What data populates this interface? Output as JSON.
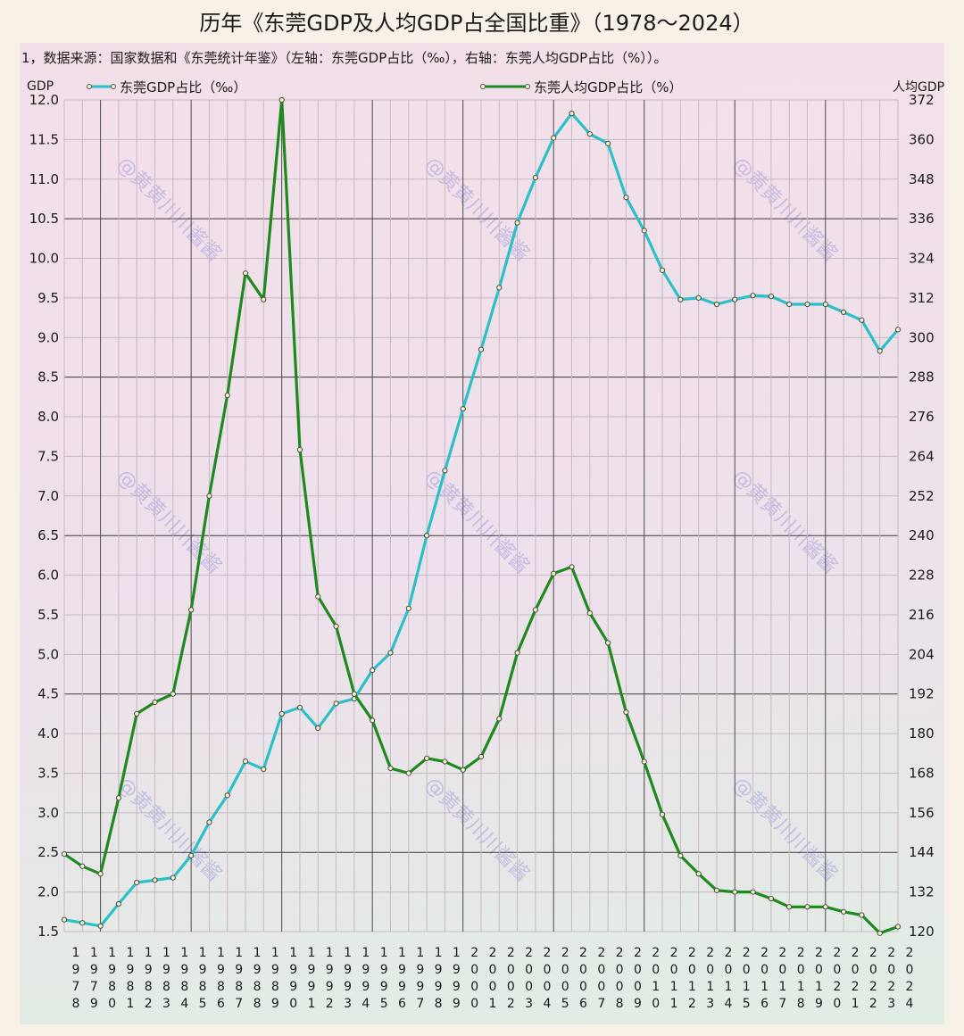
{
  "title": "历年《东莞GDP及人均GDP占全国比重》（1978～2024）",
  "note": "1，数据来源：国家数据和《东莞统计年鉴》（左轴：东莞GDP占比（‰），右轴：东莞人均GDP占比（%））。",
  "watermark": "@黄黄川川酱酱",
  "colors": {
    "gdp": "#29c0c8",
    "per_capita": "#1e8a1e",
    "marker_fill": "#f2f2c8"
  },
  "chart_data": {
    "type": "line",
    "title": "历年《东莞GDP及人均GDP占全国比重》（1978～2024）",
    "left_axis_label": "GDP",
    "right_axis_label": "人均GDP",
    "ylim_left": [
      1.5,
      12.0
    ],
    "ylim_right": [
      120,
      372
    ],
    "left_ticks": [
      "1.5",
      "2.0",
      "2.5",
      "3.0",
      "3.5",
      "4.0",
      "4.5",
      "5.0",
      "5.5",
      "6.0",
      "6.5",
      "7.0",
      "7.5",
      "8.0",
      "8.5",
      "9.0",
      "9.5",
      "10.0",
      "10.5",
      "11.0",
      "11.5",
      "12.0"
    ],
    "right_ticks": [
      "120",
      "132",
      "144",
      "156",
      "168",
      "180",
      "192",
      "204",
      "216",
      "228",
      "240",
      "252",
      "264",
      "276",
      "288",
      "300",
      "312",
      "324",
      "336",
      "348",
      "360",
      "372"
    ],
    "x": [
      "1978",
      "1979",
      "1980",
      "1981",
      "1982",
      "1983",
      "1984",
      "1985",
      "1986",
      "1987",
      "1988",
      "1989",
      "1990",
      "1991",
      "1992",
      "1993",
      "1994",
      "1995",
      "1996",
      "1997",
      "1998",
      "1999",
      "2000",
      "2001",
      "2002",
      "2003",
      "2004",
      "2005",
      "2006",
      "2007",
      "2008",
      "2009",
      "2010",
      "2011",
      "2012",
      "2013",
      "2014",
      "2015",
      "2016",
      "2017",
      "2018",
      "2019",
      "2020",
      "2021",
      "2022",
      "2023",
      "2024"
    ],
    "grid": true,
    "legend_position": "top",
    "series": [
      {
        "name": "东莞GDP占比（‰）",
        "axis": "left",
        "values": [
          1.65,
          1.61,
          1.57,
          1.85,
          2.12,
          2.15,
          2.18,
          2.46,
          2.88,
          3.22,
          3.65,
          3.55,
          4.25,
          4.33,
          4.07,
          4.38,
          4.44,
          4.8,
          5.02,
          5.58,
          6.5,
          7.32,
          8.1,
          8.85,
          9.63,
          10.45,
          11.02,
          11.52,
          11.83,
          11.57,
          11.45,
          10.77,
          10.35,
          9.85,
          9.48,
          9.5,
          9.42,
          9.48,
          9.53,
          9.52,
          9.42,
          9.42,
          9.42,
          9.32,
          9.22,
          8.83,
          9.1
        ]
      },
      {
        "name": "东莞人均GDP占比（%）",
        "axis": "right",
        "values": [
          143.5,
          139.8,
          137.5,
          160.5,
          186,
          189.5,
          192,
          217.5,
          252,
          282.5,
          319.5,
          311.5,
          372,
          266,
          221.5,
          212.5,
          192,
          184,
          169.5,
          168,
          172.5,
          171.5,
          169,
          173,
          184.5,
          204.5,
          217.5,
          228.5,
          230.5,
          216.5,
          207.5,
          186.5,
          171.5,
          155.5,
          143,
          137.5,
          132.5,
          132,
          132,
          130,
          127.5,
          127.5,
          127.5,
          126,
          125,
          119.5,
          121.5
        ]
      }
    ]
  }
}
